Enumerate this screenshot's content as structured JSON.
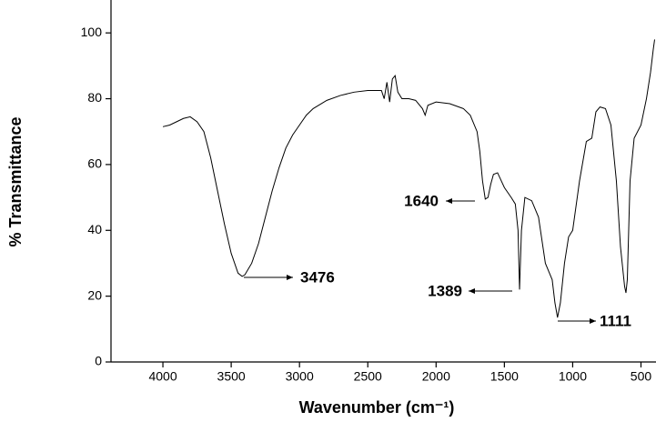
{
  "chart_data": {
    "type": "line",
    "x_label": "Wavenumber (cm⁻¹)",
    "y_label": "% Transmittance",
    "x": [
      4000,
      3950,
      3900,
      3850,
      3800,
      3750,
      3700,
      3650,
      3600,
      3550,
      3500,
      3450,
      3420,
      3400,
      3350,
      3300,
      3250,
      3200,
      3150,
      3100,
      3050,
      3000,
      2950,
      2900,
      2800,
      2700,
      2600,
      2500,
      2400,
      2380,
      2360,
      2340,
      2320,
      2300,
      2280,
      2250,
      2200,
      2150,
      2100,
      2080,
      2060,
      2000,
      1900,
      1800,
      1750,
      1700,
      1680,
      1660,
      1640,
      1620,
      1600,
      1580,
      1550,
      1500,
      1450,
      1420,
      1400,
      1389,
      1375,
      1350,
      1300,
      1250,
      1200,
      1170,
      1150,
      1130,
      1111,
      1090,
      1060,
      1030,
      1000,
      950,
      900,
      860,
      830,
      800,
      760,
      720,
      680,
      650,
      620,
      610,
      600,
      580,
      550,
      500,
      460,
      430,
      410,
      400
    ],
    "series": [
      {
        "color": "#000000",
        "values": [
          71.5,
          72,
          73,
          74,
          74.5,
          73,
          70,
          62,
          52,
          42,
          33,
          27,
          26,
          26.5,
          30,
          36,
          44,
          52,
          59,
          65,
          69,
          72,
          75,
          77,
          79.5,
          81,
          82,
          82.5,
          82.5,
          80,
          85,
          79,
          86,
          87,
          82,
          80,
          80,
          79.5,
          77,
          75,
          78,
          79,
          78.5,
          77,
          75,
          70,
          64,
          55,
          49.5,
          50,
          54,
          57,
          57.5,
          53,
          50,
          48,
          40,
          22,
          40,
          50,
          49,
          44,
          30,
          27,
          25,
          18,
          13.5,
          18,
          30,
          38,
          40,
          55,
          67,
          68,
          76,
          77.5,
          77,
          72,
          55,
          35,
          23,
          21,
          25,
          55,
          68,
          72,
          80,
          88,
          95,
          98
        ]
      }
    ],
    "xlim": [
      4380,
      390
    ],
    "ylim": [
      0,
      110
    ],
    "xticks": [
      4000,
      3500,
      3000,
      2500,
      2000,
      1500,
      1000,
      500
    ],
    "yticks": [
      0,
      20,
      40,
      60,
      80,
      100
    ],
    "annotations": [
      {
        "text": "3476"
      },
      {
        "text": "1640"
      },
      {
        "text": "1389"
      },
      {
        "text": "1111"
      }
    ]
  }
}
